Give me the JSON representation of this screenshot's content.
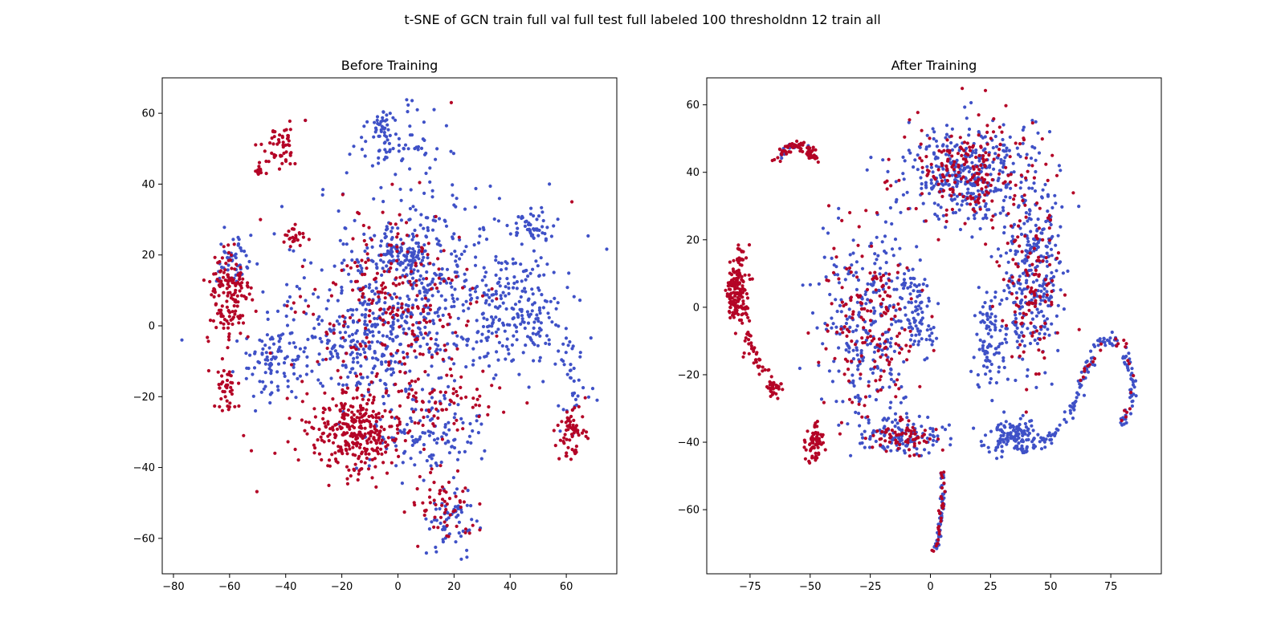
{
  "title": "t-SNE of GCN train full val full test full labeled 100 thresholdnn 12 train all",
  "colors": {
    "class_a": "#3f51c7",
    "class_b": "#b40426"
  },
  "chart_data": [
    {
      "type": "scatter",
      "title": "Before Training",
      "xlim": [
        -84,
        78
      ],
      "ylim": [
        -70,
        70
      ],
      "xticks": [
        -80,
        -60,
        -40,
        -20,
        0,
        20,
        40,
        60
      ],
      "yticks": [
        -60,
        -40,
        -20,
        0,
        20,
        40,
        60
      ],
      "xtick_labels": [
        "−80",
        "−60",
        "−40",
        "−20",
        "0",
        "20",
        "40",
        "60"
      ],
      "ytick_labels": [
        "−60",
        "−40",
        "−20",
        "0",
        "20",
        "40",
        "60"
      ],
      "series": [
        {
          "color": "#3f51c7",
          "clusters": [
            {
              "cx": 0,
              "cy": 20,
              "rx": 10,
              "ry": 6,
              "n": 90
            },
            {
              "cx": 10,
              "cy": 10,
              "rx": 40,
              "ry": 30,
              "n": 520
            },
            {
              "cx": 45,
              "cy": 5,
              "rx": 14,
              "ry": 16,
              "n": 160
            },
            {
              "cx": 48,
              "cy": 28,
              "rx": 8,
              "ry": 4,
              "n": 45
            },
            {
              "cx": -45,
              "cy": -10,
              "rx": 12,
              "ry": 10,
              "n": 90
            },
            {
              "cx": -58,
              "cy": 18,
              "rx": 6,
              "ry": 8,
              "n": 50
            },
            {
              "cx": -2,
              "cy": 52,
              "rx": 15,
              "ry": 10,
              "n": 80
            },
            {
              "cx": 20,
              "cy": -55,
              "rx": 9,
              "ry": 8,
              "n": 60
            },
            {
              "cx": 10,
              "cy": -30,
              "rx": 20,
              "ry": 12,
              "n": 120
            },
            {
              "cx": -15,
              "cy": -5,
              "rx": 25,
              "ry": 15,
              "n": 200
            },
            {
              "cx": 62,
              "cy": -15,
              "rx": 6,
              "ry": 14,
              "n": 35
            },
            {
              "cx": -5,
              "cy": 58,
              "rx": 3,
              "ry": 3,
              "n": 15
            }
          ],
          "points": [
            [
              -77,
              -4
            ],
            [
              71,
              -21
            ],
            [
              54,
              40
            ],
            [
              -33,
              58
            ]
          ]
        },
        {
          "color": "#b40426",
          "clusters": [
            {
              "cx": -15,
              "cy": -30,
              "rx": 18,
              "ry": 12,
              "n": 330
            },
            {
              "cx": -60,
              "cy": 8,
              "rx": 8,
              "ry": 14,
              "n": 150
            },
            {
              "cx": -62,
              "cy": -18,
              "rx": 4,
              "ry": 8,
              "n": 40
            },
            {
              "cx": -42,
              "cy": 50,
              "rx": 7,
              "ry": 6,
              "n": 55
            },
            {
              "cx": -50,
              "cy": 44,
              "rx": 1.5,
              "ry": 1.5,
              "n": 14
            },
            {
              "cx": 0,
              "cy": 5,
              "rx": 30,
              "ry": 25,
              "n": 260
            },
            {
              "cx": 62,
              "cy": -30,
              "rx": 5,
              "ry": 7,
              "n": 60
            },
            {
              "cx": -38,
              "cy": 25,
              "rx": 4,
              "ry": 3,
              "n": 25
            },
            {
              "cx": 15,
              "cy": -50,
              "rx": 12,
              "ry": 10,
              "n": 60
            },
            {
              "cx": 20,
              "cy": -20,
              "rx": 20,
              "ry": 10,
              "n": 60
            }
          ],
          "points": [
            [
              19,
              63
            ],
            [
              62,
              35
            ],
            [
              -33,
              58
            ],
            [
              -49,
              30
            ],
            [
              -55,
              -31
            ]
          ]
        }
      ]
    },
    {
      "type": "scatter",
      "title": "After Training",
      "xlim": [
        -93,
        96
      ],
      "ylim": [
        -79,
        68
      ],
      "xticks": [
        -75,
        -50,
        -25,
        0,
        25,
        50,
        75
      ],
      "yticks": [
        -60,
        -40,
        -20,
        0,
        20,
        40,
        60
      ],
      "xtick_labels": [
        "−75",
        "−50",
        "−25",
        "0",
        "25",
        "50",
        "75"
      ],
      "ytick_labels": [
        "−60",
        "−40",
        "−20",
        "0",
        "20",
        "40",
        "60"
      ],
      "series": [
        {
          "color": "#3f51c7",
          "clusters": [
            {
              "cx": 15,
              "cy": 40,
              "rx": 25,
              "ry": 15,
              "n": 360
            },
            {
              "cx": 42,
              "cy": 10,
              "rx": 12,
              "ry": 28,
              "n": 300
            },
            {
              "cx": -25,
              "cy": -5,
              "rx": 20,
              "ry": 28,
              "n": 280
            },
            {
              "cx": -12,
              "cy": -38,
              "rx": 18,
              "ry": 5,
              "n": 120
            },
            {
              "cx": 35,
              "cy": -38,
              "rx": 12,
              "ry": 5,
              "n": 140
            },
            {
              "cx": 25,
              "cy": -10,
              "rx": 6,
              "ry": 15,
              "n": 90
            },
            {
              "cx": -5,
              "cy": 0,
              "rx": 8,
              "ry": 12,
              "n": 80
            }
          ],
          "paths": [
            {
              "pts": [
                [
                  46,
                  -40
                ],
                [
                  55,
                  -35
                ],
                [
                  62,
                  -25
                ],
                [
                  67,
                  -15
                ],
                [
                  70,
                  -10
                ],
                [
                  75,
                  -10
                ],
                [
                  80,
                  -12
                ],
                [
                  84,
                  -20
                ],
                [
                  84,
                  -28
                ],
                [
                  80,
                  -34
                ],
                [
                  78,
                  -36
                ]
              ],
              "n": 130,
              "jitter": 0.9
            },
            {
              "pts": [
                [
                  5,
                  -48
                ],
                [
                  5,
                  -60
                ],
                [
                  3,
                  -70
                ],
                [
                  1,
                  -72
                ]
              ],
              "n": 55,
              "jitter": 0.5
            },
            {
              "pts": [
                [
                  -64,
                  44
                ],
                [
                  -60,
                  47
                ],
                [
                  -54,
                  48
                ],
                [
                  -50,
                  47
                ],
                [
                  -48,
                  45
                ]
              ],
              "n": 16,
              "jitter": 0.5
            }
          ]
        },
        {
          "color": "#b40426",
          "clusters": [
            {
              "cx": -80,
              "cy": 5,
              "rx": 4,
              "ry": 10,
              "n": 110
            },
            {
              "cx": -48,
              "cy": -40,
              "rx": 4,
              "ry": 5,
              "n": 70
            },
            {
              "cx": -65,
              "cy": -24,
              "rx": 3,
              "ry": 3,
              "n": 30
            },
            {
              "cx": 15,
              "cy": 40,
              "rx": 25,
              "ry": 15,
              "n": 200
            },
            {
              "cx": 42,
              "cy": 10,
              "rx": 12,
              "ry": 28,
              "n": 130
            },
            {
              "cx": -25,
              "cy": -5,
              "rx": 20,
              "ry": 28,
              "n": 170
            },
            {
              "cx": -12,
              "cy": -38,
              "rx": 18,
              "ry": 5,
              "n": 70
            }
          ],
          "paths": [
            {
              "pts": [
                [
                  -64,
                  44
                ],
                [
                  -60,
                  47
                ],
                [
                  -56,
                  48
                ],
                [
                  -52,
                  47
                ],
                [
                  -48,
                  45
                ],
                [
                  -47,
                  44
                ]
              ],
              "n": 70,
              "jitter": 0.8
            },
            {
              "pts": [
                [
                  -78,
                  19
                ],
                [
                  -80,
                  10
                ],
                [
                  -84,
                  4
                ],
                [
                  -82,
                  -2
                ],
                [
                  -76,
                  -2
                ]
              ],
              "n": 60,
              "jitter": 1.2
            },
            {
              "pts": [
                [
                  -77,
                  -6
                ],
                [
                  -74,
                  -14
                ],
                [
                  -70,
                  -18
                ],
                [
                  -66,
                  -22
                ]
              ],
              "n": 40,
              "jitter": 1.2
            },
            {
              "pts": [
                [
                  5,
                  -48
                ],
                [
                  5,
                  -60
                ],
                [
                  3,
                  -70
                ],
                [
                  1,
                  -72
                ]
              ],
              "n": 30,
              "jitter": 0.4
            },
            {
              "pts": [
                [
                  62,
                  -22
                ],
                [
                  70,
                  -12
                ],
                [
                  80,
                  -10
                ],
                [
                  84,
                  -20
                ],
                [
                  82,
                  -30
                ],
                [
                  79,
                  -35
                ]
              ],
              "n": 25,
              "jitter": 0.7
            }
          ]
        }
      ]
    }
  ]
}
